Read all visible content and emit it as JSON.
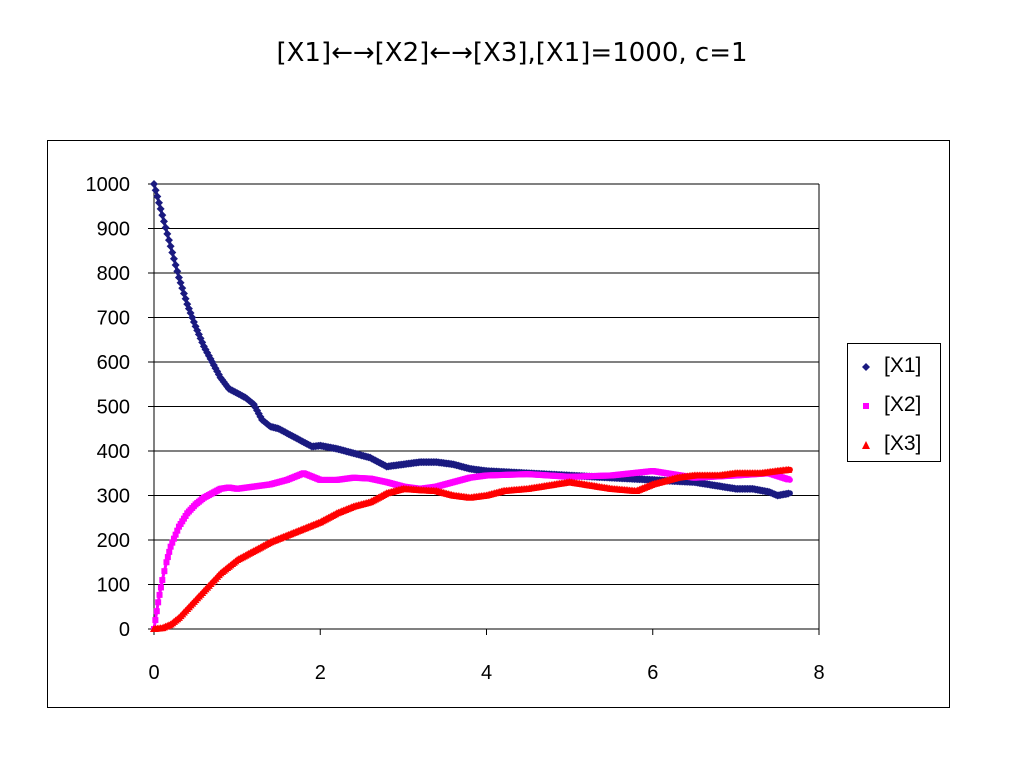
{
  "slide_title": "[X1]←→[X2]←→[X3],[X1]=1000, c=1",
  "chart_data": {
    "type": "scatter",
    "title": "[X1]←→[X2]←→[X3],[X1]=1000, c=1",
    "xlabel": "",
    "ylabel": "",
    "xlim": [
      0,
      8
    ],
    "ylim": [
      0,
      1000
    ],
    "x_ticks": [
      0,
      2,
      4,
      6,
      8
    ],
    "y_ticks": [
      0,
      100,
      200,
      300,
      400,
      500,
      600,
      700,
      800,
      900,
      1000
    ],
    "grid": "horizontal",
    "legend_position": "right",
    "series": [
      {
        "name": "[X1]",
        "color": "#1A1A80",
        "marker": "diamond",
        "points": [
          [
            0,
            1000
          ],
          [
            0.1,
            930
          ],
          [
            0.2,
            860
          ],
          [
            0.3,
            790
          ],
          [
            0.4,
            730
          ],
          [
            0.5,
            680
          ],
          [
            0.6,
            635
          ],
          [
            0.7,
            600
          ],
          [
            0.8,
            565
          ],
          [
            0.9,
            540
          ],
          [
            1.0,
            530
          ],
          [
            1.1,
            520
          ],
          [
            1.2,
            505
          ],
          [
            1.3,
            470
          ],
          [
            1.4,
            455
          ],
          [
            1.5,
            450
          ],
          [
            1.6,
            440
          ],
          [
            1.7,
            430
          ],
          [
            1.8,
            420
          ],
          [
            1.9,
            410
          ],
          [
            2.0,
            412
          ],
          [
            2.2,
            405
          ],
          [
            2.4,
            395
          ],
          [
            2.6,
            385
          ],
          [
            2.8,
            365
          ],
          [
            3.0,
            370
          ],
          [
            3.2,
            375
          ],
          [
            3.4,
            375
          ],
          [
            3.6,
            370
          ],
          [
            3.8,
            360
          ],
          [
            4.0,
            355
          ],
          [
            4.5,
            350
          ],
          [
            5.0,
            345
          ],
          [
            5.5,
            340
          ],
          [
            6.0,
            335
          ],
          [
            6.5,
            330
          ],
          [
            7.0,
            315
          ],
          [
            7.2,
            315
          ],
          [
            7.4,
            308
          ],
          [
            7.5,
            300
          ],
          [
            7.65,
            305
          ]
        ]
      },
      {
        "name": "[X2]",
        "color": "#FF00FF",
        "marker": "square",
        "points": [
          [
            0,
            0
          ],
          [
            0.05,
            60
          ],
          [
            0.1,
            110
          ],
          [
            0.15,
            150
          ],
          [
            0.2,
            185
          ],
          [
            0.3,
            230
          ],
          [
            0.4,
            260
          ],
          [
            0.5,
            280
          ],
          [
            0.6,
            295
          ],
          [
            0.7,
            305
          ],
          [
            0.8,
            315
          ],
          [
            0.9,
            318
          ],
          [
            1.0,
            315
          ],
          [
            1.2,
            320
          ],
          [
            1.4,
            325
          ],
          [
            1.6,
            335
          ],
          [
            1.8,
            350
          ],
          [
            2.0,
            335
          ],
          [
            2.2,
            335
          ],
          [
            2.4,
            340
          ],
          [
            2.6,
            338
          ],
          [
            2.8,
            330
          ],
          [
            3.0,
            320
          ],
          [
            3.2,
            315
          ],
          [
            3.4,
            320
          ],
          [
            3.6,
            330
          ],
          [
            3.8,
            340
          ],
          [
            4.0,
            345
          ],
          [
            4.5,
            348
          ],
          [
            5.0,
            342
          ],
          [
            5.5,
            345
          ],
          [
            6.0,
            355
          ],
          [
            6.5,
            340
          ],
          [
            7.0,
            345
          ],
          [
            7.4,
            350
          ],
          [
            7.65,
            335
          ]
        ]
      },
      {
        "name": "[X3]",
        "color": "#FF0000",
        "marker": "triangle",
        "points": [
          [
            0,
            0
          ],
          [
            0.1,
            2
          ],
          [
            0.2,
            10
          ],
          [
            0.3,
            25
          ],
          [
            0.4,
            45
          ],
          [
            0.5,
            65
          ],
          [
            0.6,
            85
          ],
          [
            0.7,
            105
          ],
          [
            0.8,
            125
          ],
          [
            0.9,
            140
          ],
          [
            1.0,
            155
          ],
          [
            1.2,
            175
          ],
          [
            1.4,
            195
          ],
          [
            1.6,
            210
          ],
          [
            1.8,
            225
          ],
          [
            2.0,
            240
          ],
          [
            2.2,
            260
          ],
          [
            2.4,
            275
          ],
          [
            2.6,
            285
          ],
          [
            2.8,
            305
          ],
          [
            3.0,
            315
          ],
          [
            3.2,
            312
          ],
          [
            3.4,
            310
          ],
          [
            3.6,
            300
          ],
          [
            3.8,
            295
          ],
          [
            4.0,
            300
          ],
          [
            4.2,
            310
          ],
          [
            4.5,
            315
          ],
          [
            5.0,
            330
          ],
          [
            5.5,
            315
          ],
          [
            5.8,
            310
          ],
          [
            6.0,
            325
          ],
          [
            6.3,
            340
          ],
          [
            6.5,
            345
          ],
          [
            6.8,
            345
          ],
          [
            7.0,
            350
          ],
          [
            7.3,
            350
          ],
          [
            7.5,
            355
          ],
          [
            7.65,
            358
          ]
        ]
      }
    ]
  }
}
